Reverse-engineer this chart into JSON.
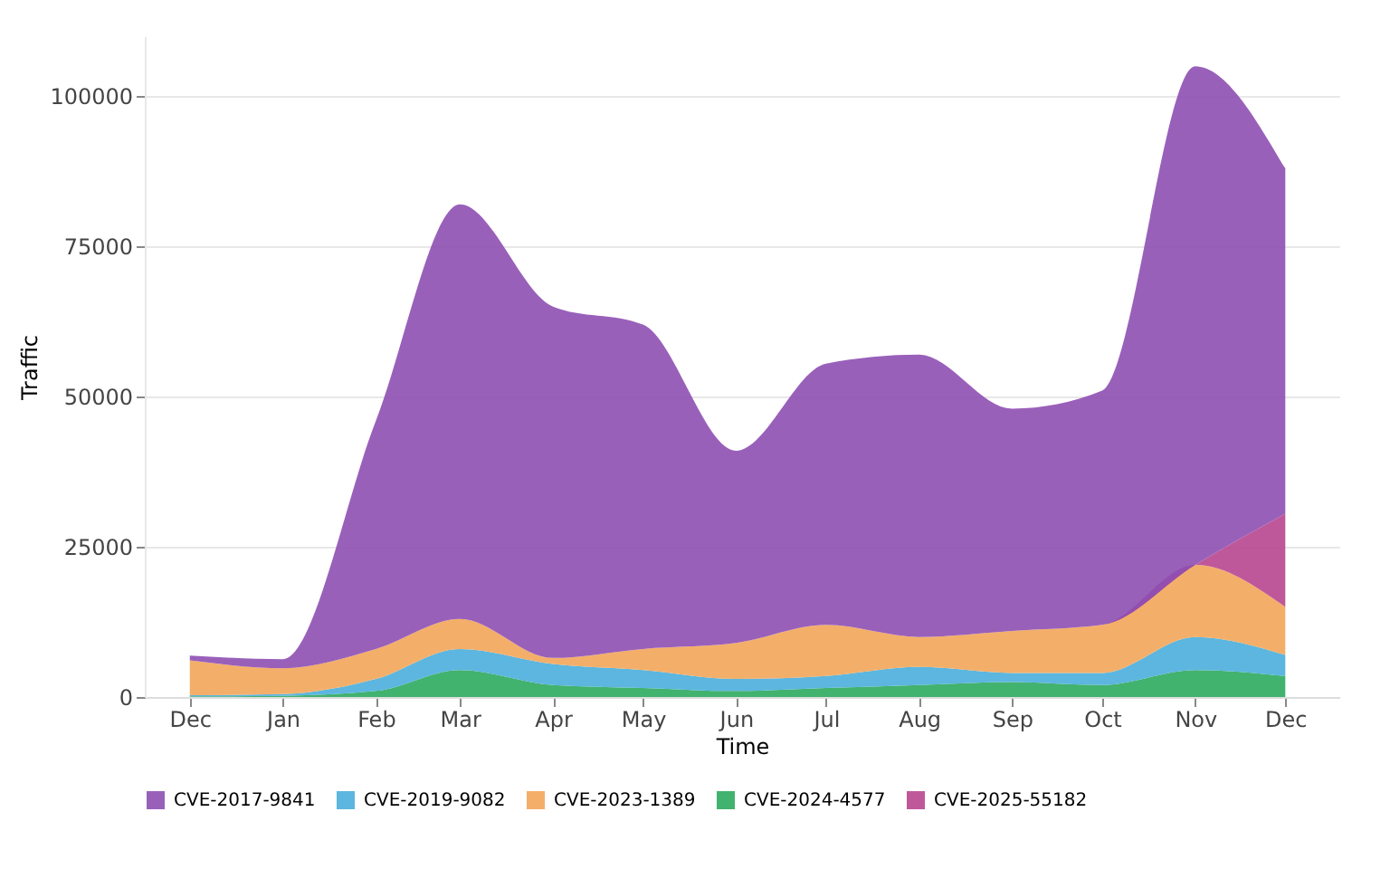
{
  "chart_data": {
    "type": "area",
    "stacked": true,
    "xlabel": "Time",
    "ylabel": "Traffic",
    "legend": "bottom",
    "grid": "y",
    "x": [
      "2024-12-01",
      "2025-01-01",
      "2025-02-01",
      "2025-03-01",
      "2025-04-01",
      "2025-05-01",
      "2025-06-01",
      "2025-07-01",
      "2025-08-01",
      "2025-09-01",
      "2025-10-01",
      "2025-11-01",
      "2025-12-01"
    ],
    "xlim": [
      "2024-11-16",
      "2025-12-19"
    ],
    "xticks": [
      {
        "value": "2024-12-01",
        "label": "Dec"
      },
      {
        "value": "2025-01-01",
        "label": "Jan"
      },
      {
        "value": "2025-02-01",
        "label": "Feb"
      },
      {
        "value": "2025-03-01",
        "label": "Mar"
      },
      {
        "value": "2025-04-01",
        "label": "Apr"
      },
      {
        "value": "2025-05-01",
        "label": "May"
      },
      {
        "value": "2025-06-01",
        "label": "Jun"
      },
      {
        "value": "2025-07-01",
        "label": "Jul"
      },
      {
        "value": "2025-08-01",
        "label": "Aug"
      },
      {
        "value": "2025-09-01",
        "label": "Sep"
      },
      {
        "value": "2025-10-01",
        "label": "Oct"
      },
      {
        "value": "2025-11-01",
        "label": "Nov"
      },
      {
        "value": "2025-12-01",
        "label": "Dec"
      }
    ],
    "ylim": [
      0,
      110000
    ],
    "yticks": [
      0,
      25000,
      50000,
      75000,
      100000
    ],
    "series": [
      {
        "name": "CVE-2024-4577",
        "color": "#2eaa5f",
        "values": [
          100,
          200,
          1000,
          4500,
          2000,
          1500,
          1000,
          1500,
          2000,
          2500,
          2000,
          4500,
          3500
        ]
      },
      {
        "name": "CVE-2019-9082",
        "color": "#4aaedb",
        "values": [
          200,
          300,
          2000,
          3500,
          3500,
          3000,
          2000,
          2000,
          3000,
          1500,
          2000,
          5500,
          3500
        ]
      },
      {
        "name": "CVE-2023-1389",
        "color": "#f2a65a",
        "values": [
          5800,
          4300,
          5000,
          5000,
          1000,
          3500,
          6000,
          8500,
          5000,
          7000,
          8000,
          12000,
          8000
        ]
      },
      {
        "name": "CVE-2025-55182",
        "color": "#b8468f",
        "values": [
          0,
          0,
          0,
          0,
          0,
          0,
          0,
          0,
          0,
          0,
          0,
          0,
          15500
        ]
      },
      {
        "name": "CVE-2017-9841",
        "color": "#8e4fb3",
        "values": [
          800,
          1500,
          38000,
          69000,
          58500,
          54000,
          32000,
          43500,
          47000,
          37000,
          39000,
          83000,
          57500
        ]
      }
    ]
  }
}
